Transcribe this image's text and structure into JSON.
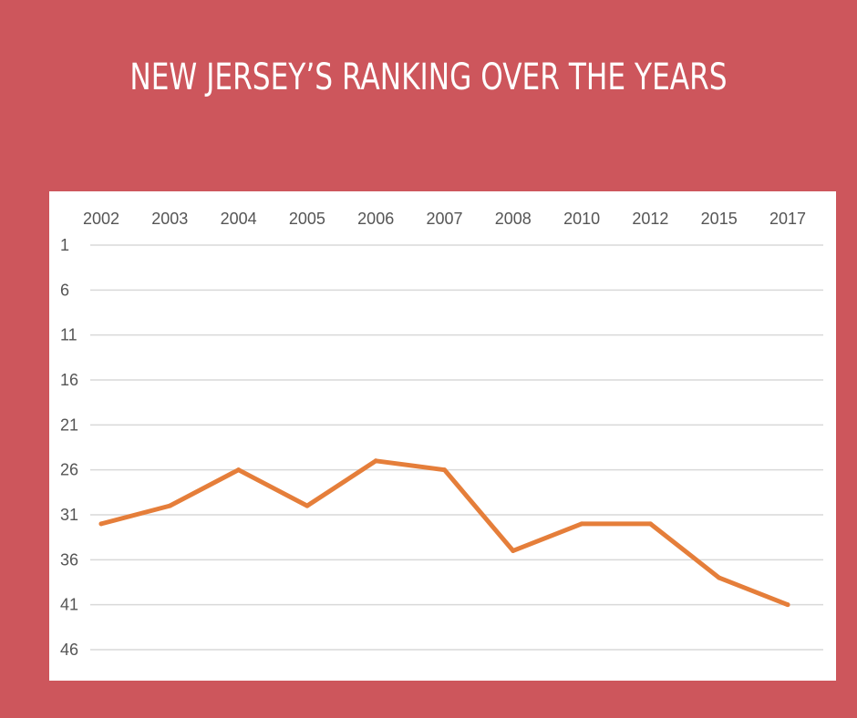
{
  "title": "NEW JERSEY’S RANKING OVER THE YEARS",
  "chart_data": {
    "type": "line",
    "title": "NEW JERSEY’S RANKING OVER THE YEARS",
    "categories": [
      "2002",
      "2003",
      "2004",
      "2005",
      "2006",
      "2007",
      "2008",
      "2010",
      "2012",
      "2015",
      "2017"
    ],
    "series": [
      {
        "values": [
          32,
          30,
          26,
          30,
          25,
          26,
          35,
          32,
          32,
          38,
          41
        ]
      }
    ],
    "y_ticks": [
      1,
      6,
      11,
      16,
      21,
      26,
      31,
      36,
      41,
      46
    ],
    "ylim": [
      1,
      46
    ],
    "y_reversed": true,
    "x_axis_position": "top",
    "grid": true,
    "legend": "none",
    "colors": {
      "background": "#cd565c",
      "plot_bg": "#ffffff",
      "line": "#e57e3a",
      "grid": "#d9d9d9"
    }
  }
}
